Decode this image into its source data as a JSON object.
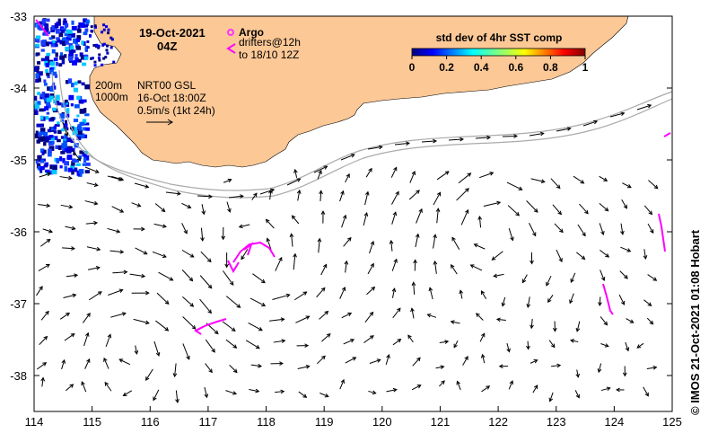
{
  "title": {
    "date": "19-Oct-2021",
    "time": "04Z"
  },
  "legend": {
    "argo_label": "Argo",
    "drifters_line1": "drifters@12h",
    "drifters_line2": "to 18/10 12Z",
    "argo_color": "#ff33ff",
    "drifter_color": "#ff00ff"
  },
  "contours": {
    "label_200": "200m",
    "label_1000": "1000m"
  },
  "current_info": {
    "line1": "NRT00 GSL",
    "line2": "16-Oct 18:00Z",
    "line3": "0.5m/s (1kt 24h)"
  },
  "colorbar": {
    "title": "std dev of 4hr SST comp",
    "ticks": [
      "0",
      "0.2",
      "0.4",
      "0.6",
      "0.8",
      "1"
    ],
    "range": [
      0,
      1
    ]
  },
  "credit": "© IMOS 21-Oct-2021 01:08 Hobart",
  "axes": {
    "x_ticks": [
      "114",
      "115",
      "116",
      "117",
      "118",
      "119",
      "120",
      "121",
      "122",
      "123",
      "124",
      "125"
    ],
    "y_ticks": [
      "-33",
      "-34",
      "-35",
      "-36",
      "-37",
      "-38"
    ],
    "lon_range": [
      114,
      125
    ],
    "lat_range": [
      -38.5,
      -33
    ]
  },
  "colors": {
    "land": "#fcc896",
    "sea": "#ffffff",
    "isobath": "#aaaaaa",
    "vector": "#000000"
  }
}
